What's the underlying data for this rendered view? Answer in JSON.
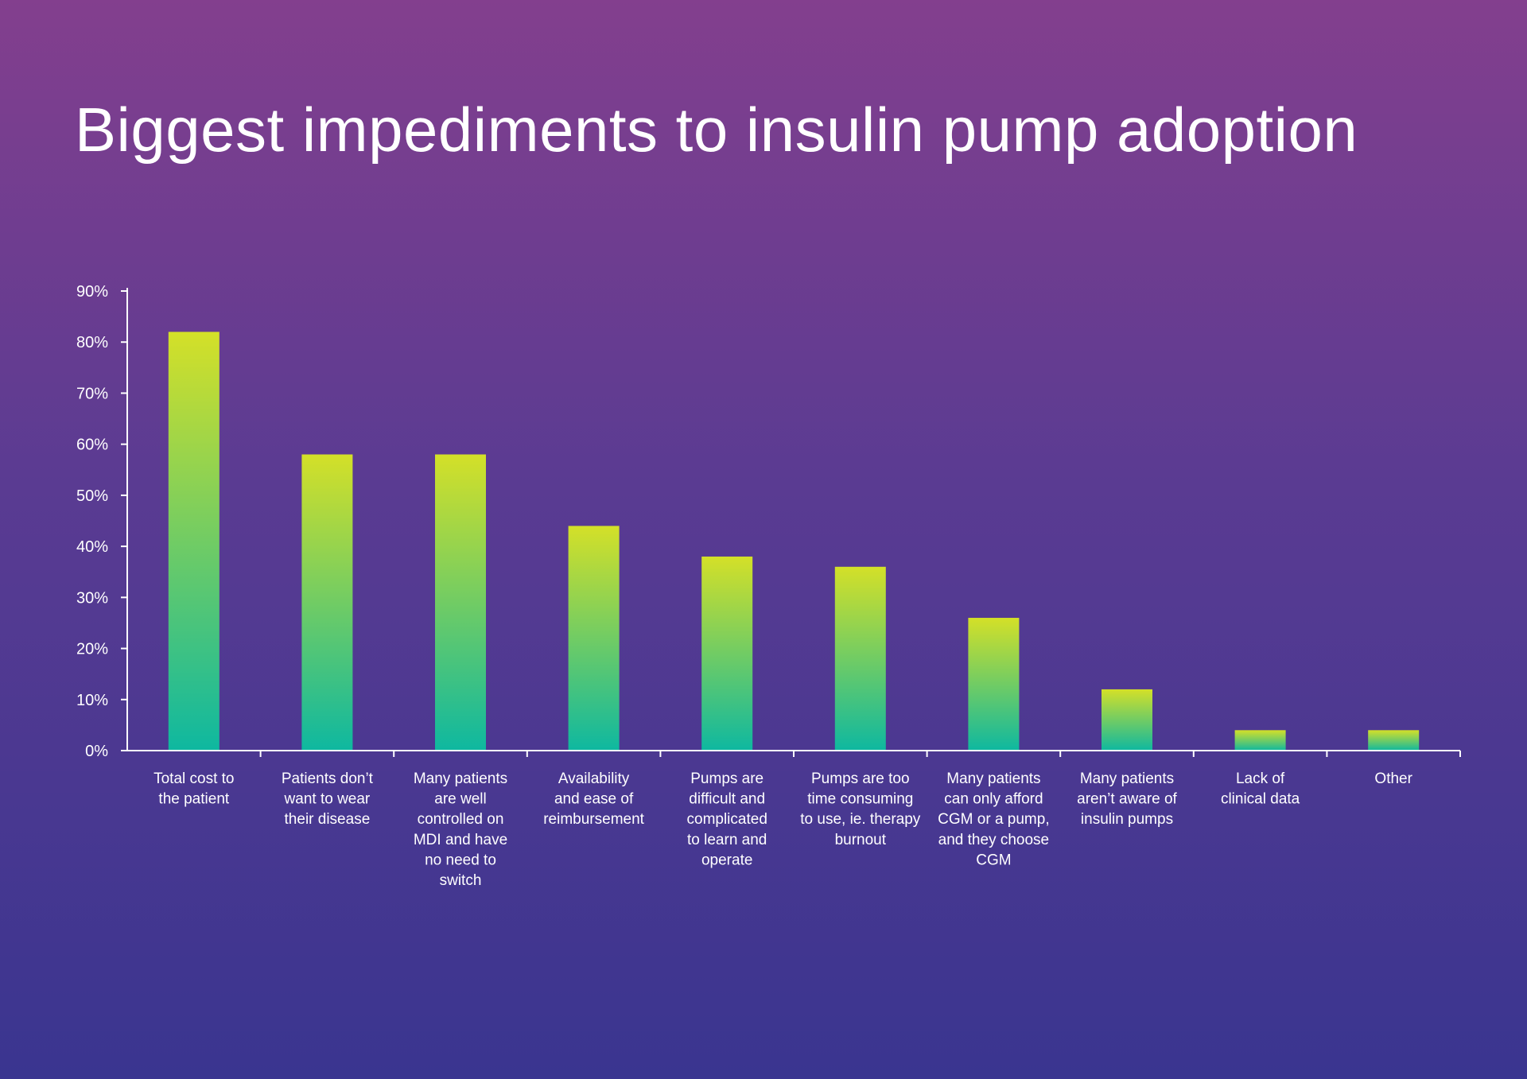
{
  "chart_data": {
    "type": "bar",
    "title": "Biggest impediments to insulin pump adoption",
    "xlabel": "",
    "ylabel": "",
    "ylim": [
      0,
      90
    ],
    "yticks": [
      "0%",
      "10%",
      "20%",
      "30%",
      "40%",
      "50%",
      "60%",
      "70%",
      "80%",
      "90%"
    ],
    "categories": [
      [
        "Total cost to",
        "the patient"
      ],
      [
        "Patients don’t",
        "want to wear",
        "their disease"
      ],
      [
        "Many patients",
        "are well",
        "controlled on",
        "MDI and have",
        "no need to",
        "switch"
      ],
      [
        "Availability",
        "and ease of",
        "reimbursement"
      ],
      [
        "Pumps are",
        "difficult and",
        "complicated",
        "to learn and",
        "operate"
      ],
      [
        "Pumps are too",
        "time consuming",
        "to use, ie. therapy",
        "burnout"
      ],
      [
        "Many patients",
        "can only afford",
        "CGM or a pump,",
        "and they choose",
        "CGM"
      ],
      [
        "Many patients",
        "aren’t aware of",
        "insulin pumps"
      ],
      [
        "Lack of",
        "clinical data"
      ],
      [
        "Other"
      ]
    ],
    "values": [
      82,
      58,
      58,
      44,
      38,
      36,
      26,
      12,
      4,
      4
    ],
    "grid": false,
    "legend": "none",
    "colors": {
      "bar_top": "#d4e028",
      "bar_bottom": "#0eb8a0",
      "axis": "#ffffff"
    }
  }
}
